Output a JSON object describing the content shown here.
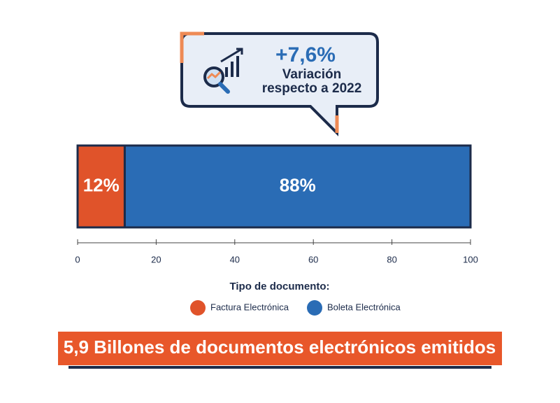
{
  "chart_data": {
    "type": "bar",
    "orientation": "horizontal",
    "stacked": true,
    "categories": [
      null
    ],
    "series": [
      {
        "name": "Factura Electrónica",
        "color": "#e0532a",
        "values": [
          12
        ],
        "value_labels": [
          "12%"
        ]
      },
      {
        "name": "Boleta Electrónica",
        "color": "#2a6cb5",
        "values": [
          88
        ],
        "value_labels": [
          "88%"
        ]
      }
    ],
    "xlim": [
      0,
      100
    ],
    "xticks": [
      0,
      20,
      40,
      60,
      80,
      100
    ],
    "legend_title": "Tipo de documento:",
    "callout": {
      "value": "+7,6%",
      "line1": "Variación",
      "line2": "respecto a 2022"
    },
    "footer": "5,9 Billones de documentos electrónicos emitidos"
  }
}
